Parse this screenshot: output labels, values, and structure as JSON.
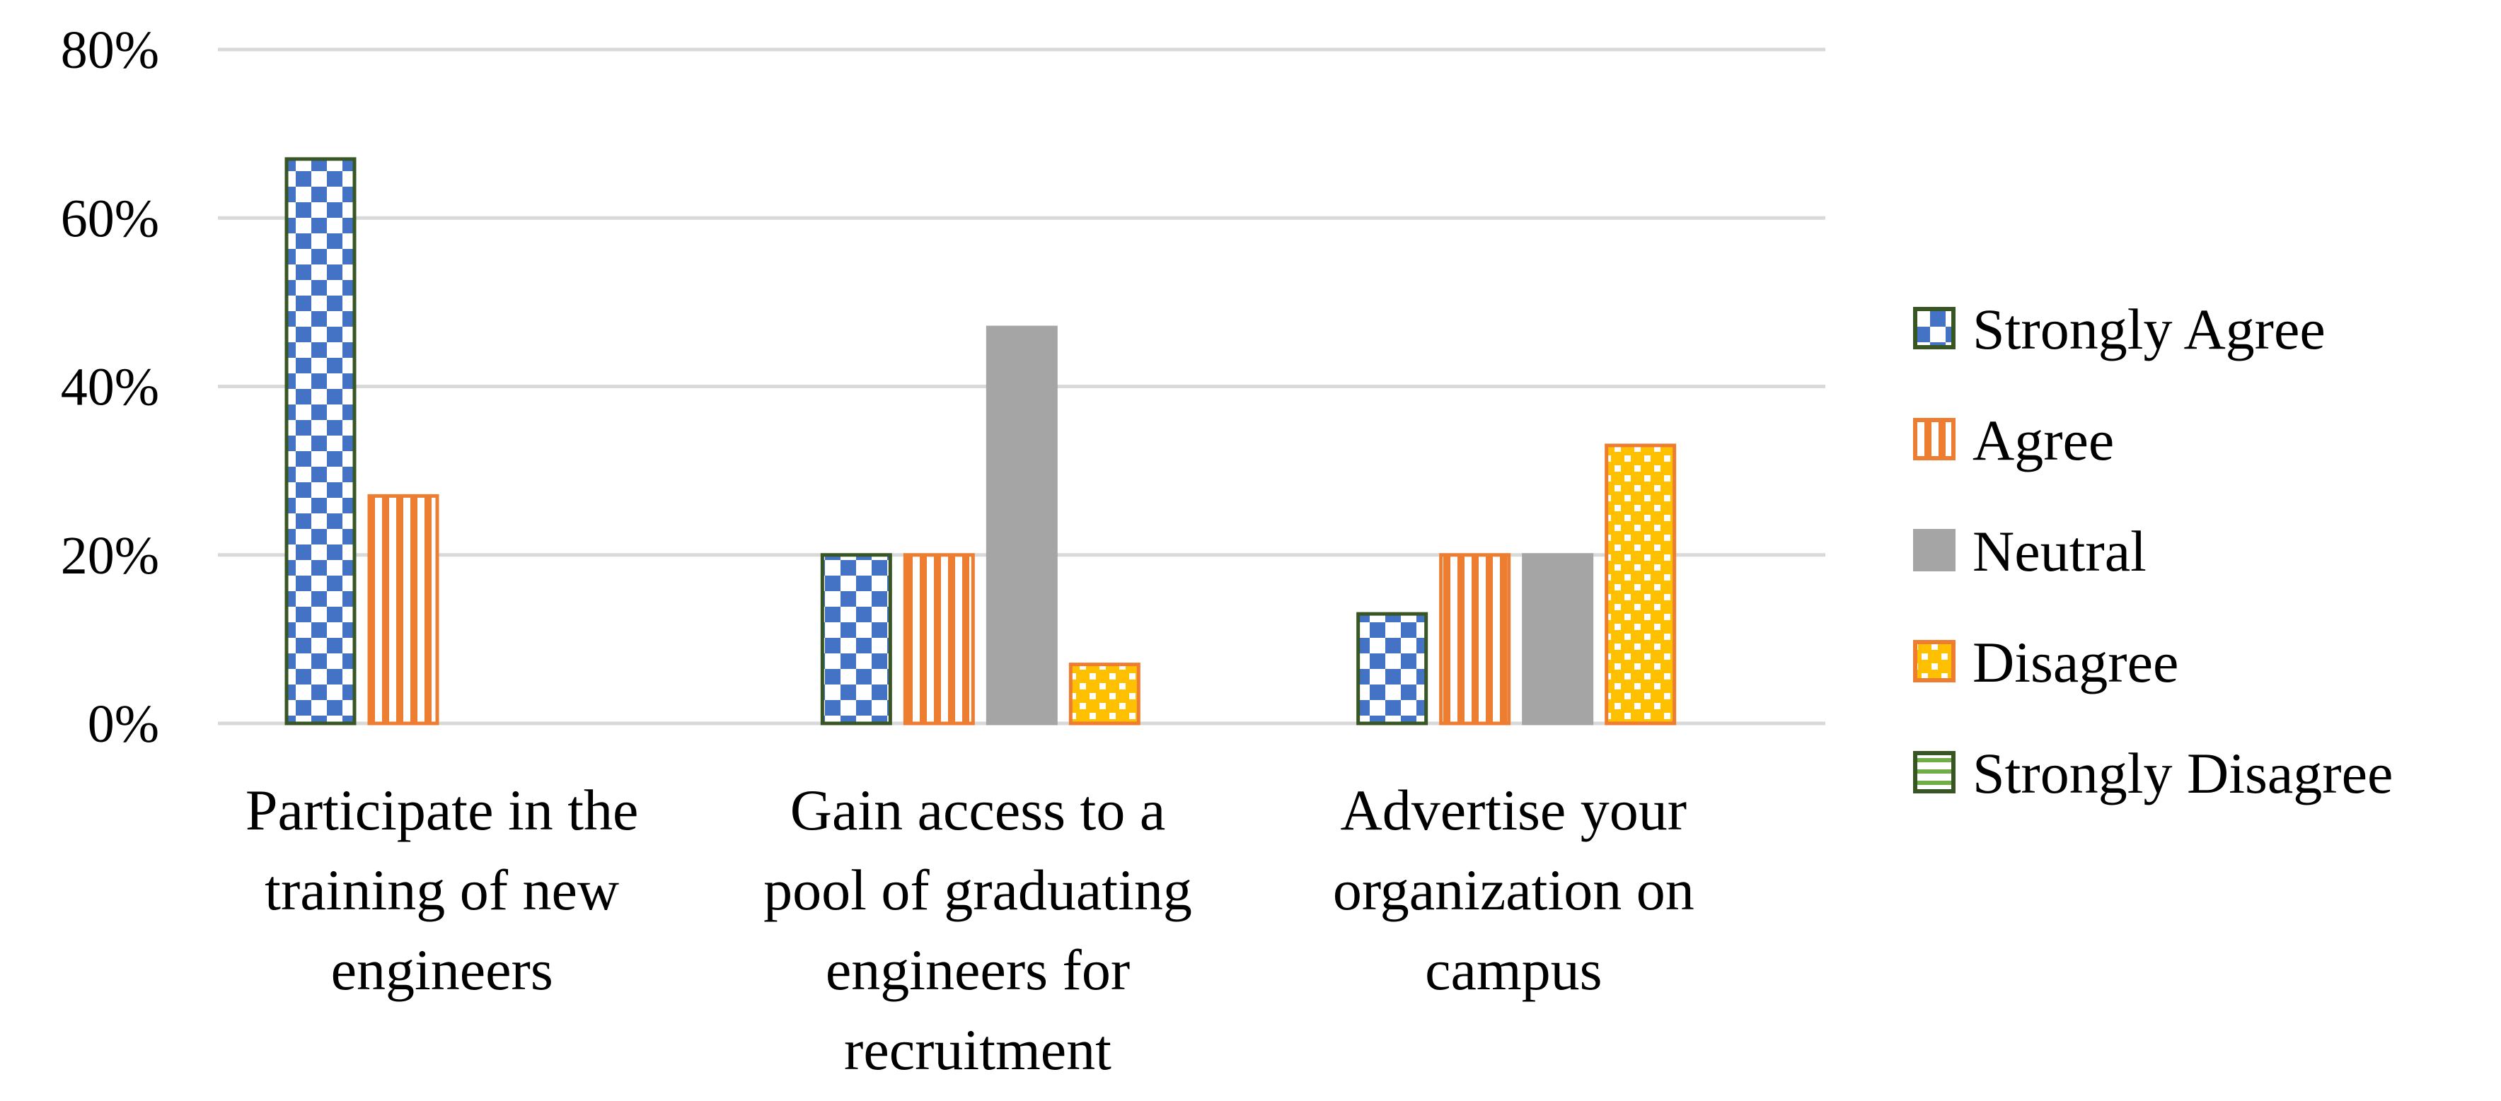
{
  "chart_data": {
    "type": "bar",
    "title": "",
    "xlabel": "",
    "ylabel": "",
    "ylim": [
      0,
      80
    ],
    "yticks": [
      0,
      20,
      40,
      60,
      80
    ],
    "ytick_labels": [
      "0%",
      "20%",
      "40%",
      "60%",
      "80%"
    ],
    "grid": true,
    "legend_position": "right",
    "categories": [
      [
        "Participate in the",
        "training of new",
        "engineers"
      ],
      [
        "Gain access to a",
        "pool of graduating",
        "engineers for",
        "recruitment"
      ],
      [
        "Advertise your",
        "organization on",
        "campus"
      ]
    ],
    "series": [
      {
        "name": "Strongly Agree",
        "values": [
          67,
          20,
          13
        ],
        "pattern": "checker",
        "color": "#4472C4",
        "border": "#375623"
      },
      {
        "name": "Agree",
        "values": [
          27,
          20,
          20
        ],
        "pattern": "vstripes",
        "color": "#ED7D31",
        "border": "#ED7D31"
      },
      {
        "name": "Neutral",
        "values": [
          0,
          47,
          20
        ],
        "pattern": "solid",
        "color": "#A5A5A5",
        "border": "#A5A5A5"
      },
      {
        "name": "Disagree",
        "values": [
          0,
          7,
          33
        ],
        "pattern": "dots",
        "color": "#FFC000",
        "border": "#ED7D31"
      },
      {
        "name": "Strongly Disagree",
        "values": [
          0,
          0,
          0
        ],
        "pattern": "hstripes",
        "color": "#70AD47",
        "border": "#375623"
      }
    ]
  }
}
